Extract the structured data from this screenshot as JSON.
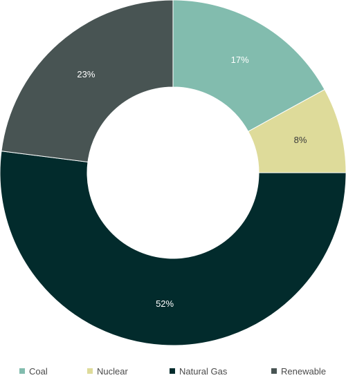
{
  "chart_data": {
    "type": "pie",
    "donut": true,
    "categories": [
      "Coal",
      "Nuclear",
      "Natural Gas",
      "Renewable"
    ],
    "values": [
      17,
      8,
      52,
      23
    ],
    "value_labels": [
      "17%",
      "8%",
      "52%",
      "23%"
    ],
    "colors": [
      "#82bcae",
      "#dedb9a",
      "#022b2c",
      "#485453"
    ],
    "label_colors": [
      "#ffffff",
      "#3a3a3a",
      "#ffffff",
      "#ffffff"
    ],
    "start_angle": "top",
    "direction": "clockwise",
    "legend_position": "bottom",
    "title": "",
    "xlabel": "",
    "ylabel": ""
  }
}
